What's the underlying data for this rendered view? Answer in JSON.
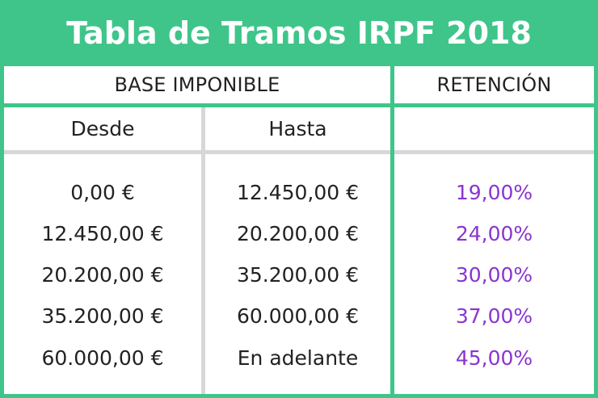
{
  "title": "Tabla de Tramos IRPF 2018",
  "headers": {
    "base": "BASE IMPONIBLE",
    "retencion": "RETENCIÓN",
    "desde": "Desde",
    "hasta": "Hasta"
  },
  "rows": [
    {
      "desde": "0,00 €",
      "hasta": "12.450,00 €",
      "retencion": "19,00%"
    },
    {
      "desde": "12.450,00 €",
      "hasta": "20.200,00 €",
      "retencion": "24,00%"
    },
    {
      "desde": "20.200,00 €",
      "hasta": "35.200,00 €",
      "retencion": "30,00%"
    },
    {
      "desde": "35.200,00 €",
      "hasta": "60.000,00 €",
      "retencion": "37,00%"
    },
    {
      "desde": "60.000,00 €",
      "hasta": "En adelante",
      "retencion": "45,00%"
    }
  ],
  "colors": {
    "accent": "#3fc58a",
    "percent": "#8a35d0",
    "divider": "#d7d7d7"
  }
}
